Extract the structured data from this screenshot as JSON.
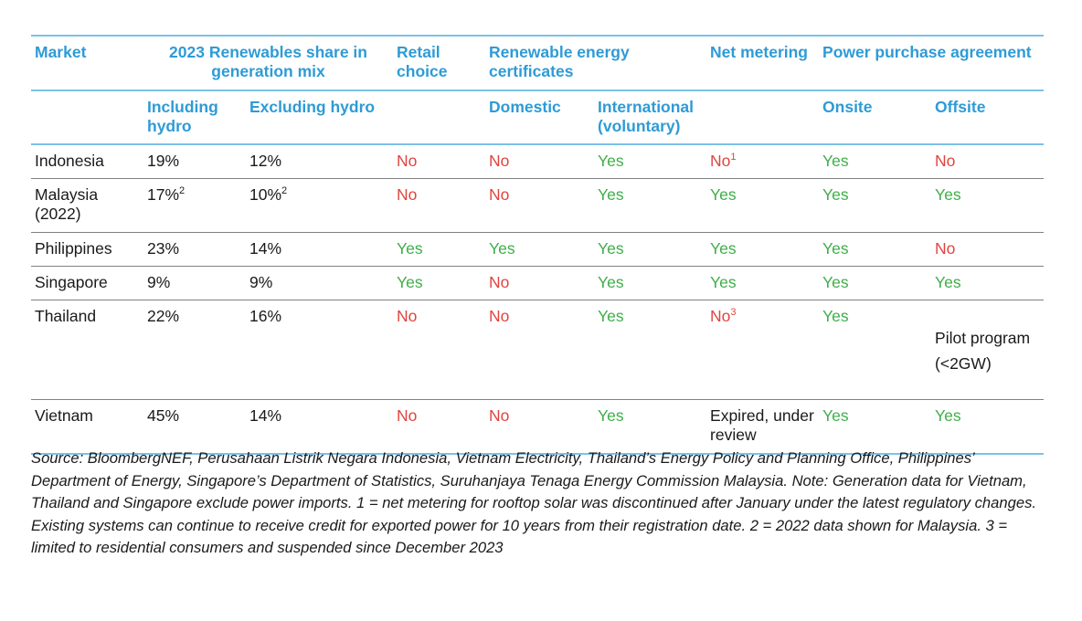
{
  "headers": {
    "market": "Market",
    "share": "2023 Renewables share in generation mix",
    "retail": "Retail choice",
    "rec": "Renewable energy certificates",
    "net": "Net metering",
    "ppa": "Power purchase agreement",
    "including_hydro": "Including hydro",
    "excluding_hydro": "Excluding hydro",
    "domestic": "Domestic",
    "international": "International (voluntary)",
    "onsite": "Onsite",
    "offsite": "Offsite"
  },
  "rows": [
    {
      "market": "Indonesia",
      "incl": "19%",
      "incl_sup": "",
      "excl": "12%",
      "excl_sup": "",
      "retail": "No",
      "domestic": "No",
      "international": "Yes",
      "net": "No",
      "net_sup": "1",
      "onsite": "Yes",
      "offsite": "No"
    },
    {
      "market": "Malaysia (2022)",
      "incl": "17%",
      "incl_sup": "2",
      "excl": "10%",
      "excl_sup": "2",
      "retail": "No",
      "domestic": "No",
      "international": "Yes",
      "net": "Yes",
      "net_sup": "",
      "onsite": "Yes",
      "offsite": "Yes"
    },
    {
      "market": "Philippines",
      "incl": "23%",
      "incl_sup": "",
      "excl": "14%",
      "excl_sup": "",
      "retail": "Yes",
      "domestic": "Yes",
      "international": "Yes",
      "net": "Yes",
      "net_sup": "",
      "onsite": "Yes",
      "offsite": "No"
    },
    {
      "market": "Singapore",
      "incl": "9%",
      "incl_sup": "",
      "excl": "9%",
      "excl_sup": "",
      "retail": "Yes",
      "domestic": "No",
      "international": "Yes",
      "net": "Yes",
      "net_sup": "",
      "onsite": "Yes",
      "offsite": "Yes"
    },
    {
      "market": "Thailand",
      "incl": "22%",
      "incl_sup": "",
      "excl": "16%",
      "excl_sup": "",
      "retail": "No",
      "domestic": "No",
      "international": "Yes",
      "net": "No",
      "net_sup": "3",
      "onsite": "Yes",
      "offsite": "Pilot program (<2GW)"
    },
    {
      "market": "Vietnam",
      "incl": "45%",
      "incl_sup": "",
      "excl": "14%",
      "excl_sup": "",
      "retail": "No",
      "domestic": "No",
      "international": "Yes",
      "net": "Expired, under review",
      "net_sup": "",
      "onsite": "Yes",
      "offsite": "Yes"
    }
  ],
  "note": "Source: BloombergNEF, Perusahaan Listrik Negara Indonesia, Vietnam Electricity, Thailand’s Energy Policy and Planning Office, Philippines’ Department of Energy, Singapore’s Department of Statistics, Suruhanjaya Tenaga Energy Commission Malaysia. Note: Generation data for Vietnam, Thailand and Singapore exclude power imports. 1 = net metering for rooftop solar was discontinued after January under the latest regulatory changes. Existing systems can continue to receive credit for exported power for 10 years from their registration date. 2 = 2022 data shown for Malaysia. 3 = limited to residential consumers and suspended since December 2023",
  "colors": {
    "header": "#2e9bd6",
    "yes": "#3fae49",
    "no": "#e0443e",
    "rule_blue": "#7cc1e8",
    "rule_gray": "#808080"
  }
}
